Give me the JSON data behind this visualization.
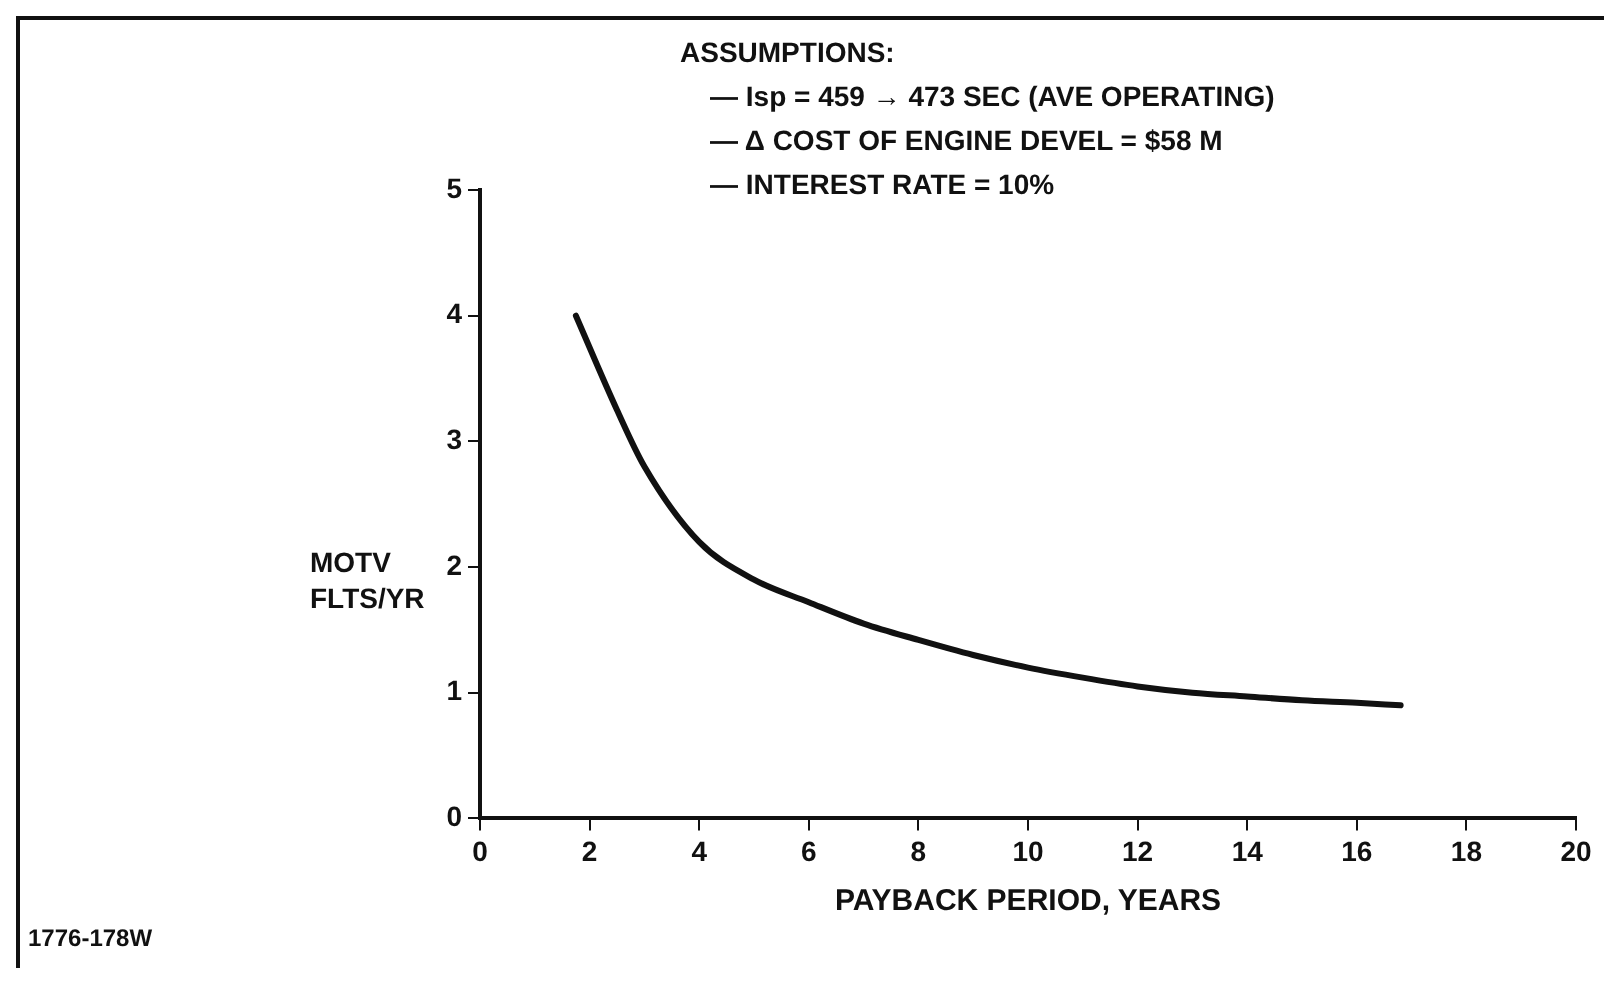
{
  "chart_data": {
    "type": "line",
    "xlabel": "PAYBACK PERIOD, YEARS",
    "ylabel": "MOTV FLTS/YR",
    "annotations": [
      "ASSUMPTIONS:",
      "— Isp = 459 → 473 SEC (AVE OPERATING)",
      "— Δ COST OF ENGINE DEVEL = $58 M",
      "— INTEREST RATE = 10%",
      "1776-178W"
    ],
    "series": [
      {
        "color": "#111111",
        "x": [
          1.75,
          2.5,
          3,
          4,
          5,
          6,
          7,
          8,
          9,
          10,
          11,
          12,
          13,
          14,
          15,
          16,
          16.8
        ],
        "values": [
          4.0,
          3.25,
          2.8,
          2.2,
          1.9,
          1.72,
          1.55,
          1.42,
          1.3,
          1.2,
          1.12,
          1.05,
          1.0,
          0.97,
          0.94,
          0.92,
          0.9
        ]
      }
    ],
    "xlim": [
      0,
      20
    ],
    "xticks": [
      0,
      2,
      4,
      6,
      8,
      10,
      12,
      14,
      16,
      18,
      20
    ],
    "ylim": [
      0,
      5
    ],
    "yticks": [
      0,
      1,
      2,
      3,
      4,
      5
    ],
    "grid": false,
    "legend": false,
    "marker": "none",
    "line_style": "solid"
  }
}
